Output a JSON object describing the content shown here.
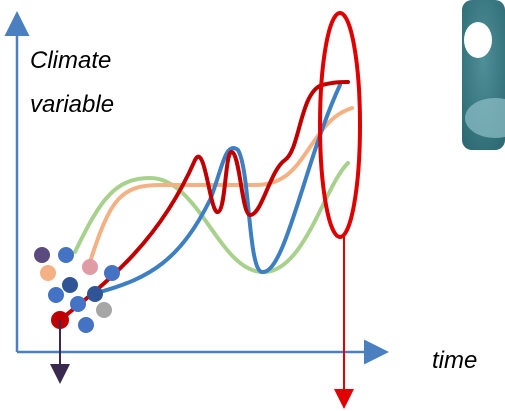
{
  "labels": {
    "y_axis": [
      "Climate",
      "variable"
    ],
    "x_axis": "time"
  }
}
